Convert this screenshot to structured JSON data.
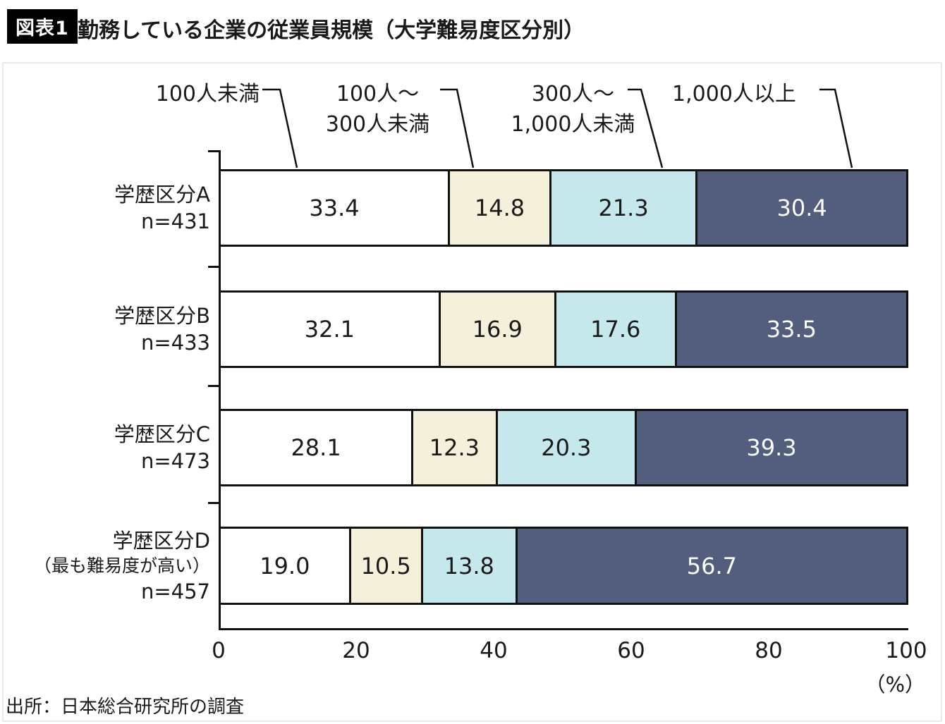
{
  "title": {
    "badge": "図表1",
    "text": "勤務している企業の従業員規模（大学難易度区分別）"
  },
  "source": "出所：日本総合研究所の調査",
  "chart_data": {
    "type": "bar",
    "orientation": "horizontal",
    "stacked": true,
    "title": "勤務している企業の従業員規模（大学難易度区分別）",
    "unit": "（%）",
    "xlim": [
      0,
      100
    ],
    "x_ticks": [
      0,
      20,
      40,
      60,
      80,
      100
    ],
    "series": [
      "100人未満",
      "100人〜300人未満",
      "300人〜1,000人未満",
      "1,000人以上"
    ],
    "legend": [
      {
        "lines": [
          "100人未満"
        ]
      },
      {
        "lines": [
          "100人〜",
          "300人未満"
        ]
      },
      {
        "lines": [
          "300人〜",
          "1,000人未満"
        ]
      },
      {
        "lines": [
          "1,000人以上"
        ]
      }
    ],
    "colors": [
      "#ffffff",
      "#f5f0da",
      "#c4e8ec",
      "#535e7e"
    ],
    "rows": [
      {
        "label_lines": [
          "学歴区分A",
          "n=431"
        ],
        "values": [
          33.4,
          14.8,
          21.3,
          30.4
        ]
      },
      {
        "label_lines": [
          "学歴区分B",
          "n=433"
        ],
        "values": [
          32.1,
          16.9,
          17.6,
          33.5
        ]
      },
      {
        "label_lines": [
          "学歴区分C",
          "n=473"
        ],
        "values": [
          28.1,
          12.3,
          20.3,
          39.3
        ]
      },
      {
        "label_lines": [
          "学歴区分D",
          "（最も難易度が高い）",
          "n=457"
        ],
        "values": [
          19.0,
          10.5,
          13.8,
          56.7
        ]
      }
    ]
  }
}
